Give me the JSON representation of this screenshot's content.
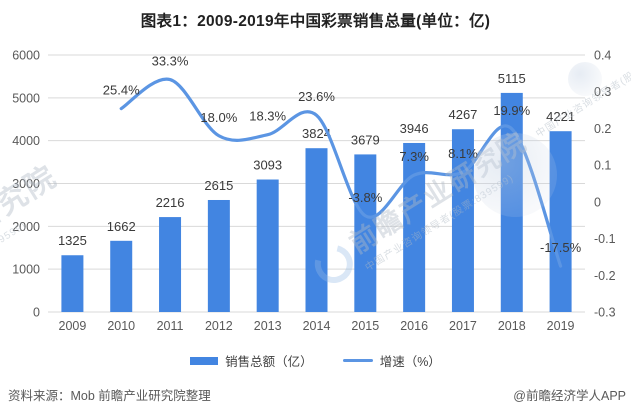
{
  "title": "图表1：2009-2019年中国彩票销售总量(单位：亿)",
  "chart_data": {
    "type": "bar+line",
    "categories": [
      "2009",
      "2010",
      "2011",
      "2012",
      "2013",
      "2014",
      "2015",
      "2016",
      "2017",
      "2018",
      "2019"
    ],
    "series": [
      {
        "name": "销售总额（亿）",
        "type": "bar",
        "axis": "left",
        "color": "#4285e1",
        "values": [
          1325,
          1662,
          2216,
          2615,
          3093,
          3824,
          3679,
          3946,
          4267,
          5115,
          4221
        ],
        "labels": [
          "1325",
          "1662",
          "2216",
          "2615",
          "3093",
          "3824",
          "3679",
          "3946",
          "4267",
          "5115",
          "4221"
        ]
      },
      {
        "name": "增速（%）",
        "type": "line",
        "axis": "right",
        "color": "#5b95e3",
        "values": [
          null,
          0.254,
          0.333,
          0.18,
          0.183,
          0.236,
          -0.038,
          0.073,
          0.081,
          0.199,
          -0.175
        ],
        "labels": [
          null,
          "25.4%",
          "33.3%",
          "18.0%",
          "18.3%",
          "23.6%",
          "-3.8%",
          "7.3%",
          "8.1%",
          "19.9%",
          "-17.5%"
        ]
      }
    ],
    "left_axis": {
      "min": 0,
      "max": 6000,
      "ticks": [
        "0",
        "1000",
        "2000",
        "3000",
        "4000",
        "5000",
        "6000"
      ]
    },
    "right_axis": {
      "min": -0.3,
      "max": 0.4,
      "ticks": [
        "-0.3",
        "-0.2",
        "-0.1",
        "0",
        "0.1",
        "0.2",
        "0.3",
        "0.4"
      ]
    },
    "grid_color": "#d9d9d9",
    "grid": "horizontal",
    "legend_position": "bottom"
  },
  "footer": {
    "source": "资料来源：Mob 前瞻产业研究院整理",
    "credit": "@前瞻经济学人APP"
  },
  "watermark": {
    "brand": "前瞻产业研究院",
    "sub": "中国产业咨询领导者(股票:839599)",
    "sub_short": "(839599)"
  }
}
